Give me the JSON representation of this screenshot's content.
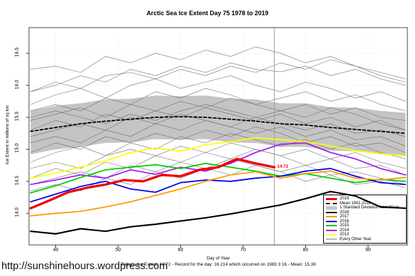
{
  "footer": {
    "url": "http://sunshinehours.wordpress.com",
    "note": "Today's Ice Extent: 14.72  - Record for the day: 16.214 which occurred on 1983 3 16  - Mean: 15.39"
  },
  "legend": {
    "items": [
      {
        "label": "2019",
        "color": "#EE0000",
        "style": "solid",
        "weight": 3
      },
      {
        "label": "Mean 1981-2010",
        "color": "#000000",
        "style": "dashed",
        "weight": 2
      },
      {
        "label": "1 Standard Deviation from Mean",
        "color": "#C4C4C4",
        "style": "band",
        "weight": 5
      },
      {
        "label": "2018",
        "color": "#000000",
        "style": "solid",
        "weight": 2
      },
      {
        "label": "2017",
        "color": "#FF9900",
        "style": "solid",
        "weight": 2
      },
      {
        "label": "2016",
        "color": "#0000EE",
        "style": "solid",
        "weight": 2
      },
      {
        "label": "2015",
        "color": "#00CC00",
        "style": "solid",
        "weight": 2
      },
      {
        "label": "2014",
        "color": "#A020F0",
        "style": "solid",
        "weight": 2
      },
      {
        "label": "2013",
        "color": "#FFFF00",
        "style": "solid",
        "weight": 2
      },
      {
        "label": "Every Other Year",
        "color": "#808080",
        "style": "solid",
        "weight": 1
      }
    ]
  },
  "chart_data": {
    "type": "line",
    "title": "Arctic Sea Ice Extent Day 75 1978 to 2019",
    "xlabel": "Day of Year",
    "ylabel": "Ice Extent in millions of sq km",
    "xlim": [
      36,
      96
    ],
    "ylim": [
      13.6,
      16.9
    ],
    "grid": true,
    "legend_position": "bottom-right",
    "day_marker": 75,
    "x_ticks": [
      {
        "day": 40,
        "label": "40"
      },
      {
        "day": 50,
        "label": "50"
      },
      {
        "day": 60,
        "label": "60"
      },
      {
        "day": 70,
        "label": "70"
      },
      {
        "day": 80,
        "label": "80"
      },
      {
        "day": 90,
        "label": "90"
      }
    ],
    "y_ticks": [
      {
        "value": 14.0,
        "label": "14.0"
      },
      {
        "value": 14.5,
        "label": "14.5"
      },
      {
        "value": 15.0,
        "label": "15.0"
      },
      {
        "value": 15.5,
        "label": "15.5"
      },
      {
        "value": 16.0,
        "label": "16.0"
      },
      {
        "value": 16.5,
        "label": "16.5"
      }
    ],
    "days": [
      36,
      40,
      44,
      48,
      52,
      56,
      60,
      64,
      68,
      72,
      76,
      80,
      84,
      88,
      92,
      96
    ],
    "mean": {
      "name": "Mean 1981-2010",
      "color": "#000000",
      "dashed": true,
      "values": [
        15.28,
        15.34,
        15.4,
        15.44,
        15.47,
        15.5,
        15.51,
        15.5,
        15.47,
        15.44,
        15.4,
        15.38,
        15.34,
        15.31,
        15.28,
        15.25
      ],
      "value_at_day_75": 15.39
    },
    "band": {
      "name": "1 Standard Deviation from Mean",
      "color": "#C4C4C4",
      "upper": [
        15.6,
        15.68,
        15.72,
        15.78,
        15.79,
        15.84,
        15.83,
        15.84,
        15.79,
        15.78,
        15.72,
        15.72,
        15.66,
        15.65,
        15.6,
        15.57
      ],
      "lower": [
        14.92,
        15.0,
        15.04,
        15.1,
        15.11,
        15.16,
        15.15,
        15.16,
        15.11,
        15.1,
        15.04,
        15.04,
        14.98,
        14.97,
        14.92,
        14.89
      ]
    },
    "series": [
      {
        "name": "2013",
        "color": "#FFFF00",
        "width": 1.8,
        "values": [
          14.55,
          14.63,
          14.72,
          14.82,
          14.95,
          15.02,
          14.97,
          15.07,
          15.12,
          15.18,
          15.15,
          15.12,
          15.05,
          14.98,
          14.93,
          14.9
        ]
      },
      {
        "name": "2014",
        "color": "#A020F0",
        "width": 1.8,
        "values": [
          14.45,
          14.52,
          14.6,
          14.55,
          14.68,
          14.61,
          14.72,
          14.66,
          14.78,
          14.95,
          15.08,
          15.1,
          14.95,
          14.85,
          14.7,
          14.6
        ]
      },
      {
        "name": "2015",
        "color": "#00CC00",
        "width": 1.8,
        "values": [
          14.32,
          14.43,
          14.56,
          14.68,
          14.72,
          14.76,
          14.7,
          14.78,
          14.72,
          14.66,
          14.58,
          14.62,
          14.55,
          14.48,
          14.53,
          14.5
        ]
      },
      {
        "name": "2016",
        "color": "#0000EE",
        "width": 1.8,
        "values": [
          14.18,
          14.3,
          14.42,
          14.5,
          14.38,
          14.33,
          14.48,
          14.52,
          14.5,
          14.55,
          14.58,
          14.66,
          14.7,
          14.58,
          14.48,
          14.45
        ]
      },
      {
        "name": "2017",
        "color": "#FF9900",
        "width": 1.8,
        "values": [
          13.96,
          14.0,
          14.03,
          14.1,
          14.18,
          14.28,
          14.38,
          14.5,
          14.6,
          14.65,
          14.55,
          14.62,
          14.66,
          14.55,
          14.52,
          14.56
        ]
      },
      {
        "name": "2018",
        "color": "#000000",
        "width": 2.2,
        "values": [
          13.72,
          13.68,
          13.76,
          13.72,
          13.79,
          13.83,
          13.88,
          13.93,
          13.99,
          14.06,
          14.13,
          14.23,
          14.34,
          14.27,
          14.1,
          14.08
        ]
      },
      {
        "name": "2019",
        "color": "#EE0000",
        "width": 3.4,
        "x": [
          36,
          39,
          42,
          45,
          48,
          51,
          54,
          57,
          60,
          63,
          66,
          69,
          72,
          75
        ],
        "values": [
          14.08,
          14.2,
          14.33,
          14.4,
          14.45,
          14.52,
          14.5,
          14.6,
          14.58,
          14.68,
          14.72,
          14.85,
          14.78,
          14.72
        ]
      }
    ],
    "gray": {
      "name": "Every Other Year",
      "color": "#6E6E6E",
      "width": 0.6,
      "series": [
        [
          16.25,
          16.3,
          16.2,
          16.45,
          16.35,
          16.5,
          16.4,
          16.55,
          16.45,
          16.6,
          16.5,
          16.35,
          16.45,
          16.3,
          16.2,
          16.1
        ],
        [
          15.9,
          16.05,
          15.95,
          16.15,
          16.2,
          16.1,
          16.25,
          16.15,
          16.3,
          16.2,
          16.35,
          16.25,
          16.4,
          16.3,
          16.15,
          16.05
        ],
        [
          15.7,
          15.85,
          15.95,
          15.8,
          16.0,
          16.1,
          15.95,
          16.05,
          16.15,
          16.0,
          15.9,
          16.05,
          15.95,
          15.8,
          15.9,
          15.75
        ],
        [
          15.6,
          15.7,
          15.6,
          15.8,
          15.7,
          15.9,
          15.8,
          15.95,
          15.85,
          15.7,
          15.8,
          15.9,
          15.75,
          15.85,
          15.7,
          15.6
        ],
        [
          15.45,
          15.55,
          15.65,
          15.5,
          15.7,
          15.6,
          15.75,
          15.65,
          15.8,
          15.7,
          15.6,
          15.7,
          15.55,
          15.65,
          15.5,
          15.45
        ],
        [
          15.3,
          15.45,
          15.35,
          15.55,
          15.45,
          15.6,
          15.5,
          15.65,
          15.55,
          15.45,
          15.55,
          15.4,
          15.5,
          15.35,
          15.45,
          15.3
        ],
        [
          15.2,
          15.3,
          15.4,
          15.3,
          15.5,
          15.4,
          15.55,
          15.45,
          15.35,
          15.5,
          15.4,
          15.3,
          15.4,
          15.25,
          15.3,
          15.2
        ],
        [
          15.1,
          15.2,
          15.1,
          15.3,
          15.2,
          15.4,
          15.3,
          15.45,
          15.35,
          15.25,
          15.35,
          15.2,
          15.3,
          15.15,
          15.2,
          15.05
        ],
        [
          14.95,
          15.1,
          15.0,
          15.2,
          15.1,
          15.25,
          15.15,
          15.3,
          15.2,
          15.35,
          15.25,
          15.1,
          15.2,
          15.05,
          15.1,
          14.95
        ],
        [
          14.8,
          14.95,
          15.05,
          14.9,
          15.1,
          15.0,
          15.2,
          15.1,
          15.25,
          15.15,
          15.05,
          15.15,
          15.0,
          15.1,
          14.95,
          14.85
        ],
        [
          14.7,
          14.8,
          14.7,
          14.9,
          15.0,
          14.9,
          15.05,
          14.95,
          15.1,
          15.0,
          14.9,
          15.0,
          14.85,
          14.95,
          14.8,
          14.7
        ],
        [
          14.55,
          14.7,
          14.6,
          14.8,
          14.7,
          14.9,
          14.8,
          14.95,
          14.85,
          15.0,
          14.9,
          14.75,
          14.85,
          14.7,
          14.75,
          14.6
        ],
        [
          14.45,
          14.55,
          14.65,
          14.55,
          14.75,
          14.65,
          14.8,
          14.7,
          14.85,
          14.75,
          14.65,
          14.75,
          14.6,
          14.65,
          14.55,
          14.45
        ],
        [
          14.35,
          14.45,
          14.35,
          14.55,
          14.45,
          14.65,
          14.55,
          14.7,
          14.6,
          14.75,
          14.65,
          14.5,
          14.6,
          14.45,
          14.5,
          14.4
        ],
        [
          15.9,
          16.0,
          16.15,
          16.05,
          16.25,
          16.15,
          16.3,
          16.2,
          16.35,
          16.25,
          16.21,
          16.3,
          16.15,
          16.25,
          16.1,
          16.0
        ],
        [
          15.5,
          15.6,
          15.5,
          15.4,
          15.55,
          15.45,
          15.6,
          15.7,
          15.6,
          15.5,
          15.6,
          15.5,
          15.65,
          15.55,
          15.4,
          15.3
        ]
      ]
    },
    "annotation": {
      "text": "14.72",
      "color": "#EE0000",
      "day": 75,
      "value": 14.72
    }
  }
}
